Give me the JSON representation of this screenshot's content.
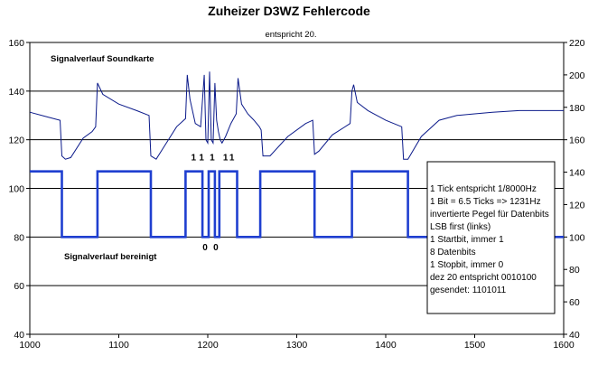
{
  "chart_data": {
    "type": "line",
    "title": "Zuheizer D3WZ Fehlercode",
    "subtitle": "entspricht 20.",
    "xlim": [
      1000,
      1600
    ],
    "xticks": [
      1000,
      1100,
      1200,
      1300,
      1400,
      1500,
      1600
    ],
    "ylim_left": [
      40,
      160
    ],
    "yticks_left": [
      40,
      60,
      80,
      100,
      120,
      140,
      160
    ],
    "ylim_right": [
      40,
      220
    ],
    "yticks_right": [
      40,
      60,
      80,
      100,
      120,
      140,
      160,
      180,
      200,
      220
    ],
    "grid": "horizontal",
    "series": [
      {
        "name": "Signalverlauf Soundkarte",
        "axis": "right",
        "color": "#0b1a8a",
        "x": [
          1000,
          1020,
          1034,
          1036,
          1040,
          1046,
          1060,
          1070,
          1074,
          1076,
          1082,
          1100,
          1120,
          1134,
          1136,
          1142,
          1150,
          1165,
          1175,
          1177,
          1180,
          1186,
          1192,
          1196,
          1198,
          1200,
          1202,
          1204,
          1206,
          1208,
          1210,
          1212,
          1214,
          1216,
          1220,
          1226,
          1232,
          1234,
          1238,
          1245,
          1252,
          1258,
          1260,
          1262,
          1270,
          1290,
          1310,
          1318,
          1320,
          1325,
          1340,
          1360,
          1362,
          1364,
          1368,
          1380,
          1400,
          1418,
          1420,
          1425,
          1440,
          1460,
          1480,
          1500,
          1520,
          1550,
          1580,
          1600
        ],
        "values": [
          177,
          174,
          172,
          150,
          148,
          149,
          161,
          165,
          168,
          195,
          188,
          182,
          178,
          175,
          150,
          148,
          155,
          168,
          173,
          200,
          185,
          170,
          168,
          200,
          160,
          158,
          202,
          160,
          158,
          195,
          172,
          165,
          160,
          158,
          162,
          170,
          176,
          198,
          182,
          176,
          172,
          168,
          166,
          150,
          150,
          162,
          170,
          172,
          151,
          153,
          163,
          170,
          190,
          194,
          183,
          178,
          172,
          168,
          148,
          148,
          162,
          172,
          175,
          176,
          177,
          178,
          178,
          178
        ]
      },
      {
        "name": "Signalverlauf bereinigt",
        "axis": "left",
        "color": "#1f3fd0",
        "x": [
          1000,
          1036,
          1036,
          1076,
          1076,
          1136,
          1136,
          1175,
          1175,
          1194,
          1194,
          1201,
          1201,
          1208,
          1208,
          1213,
          1213,
          1233,
          1233,
          1259,
          1259,
          1320,
          1320,
          1362,
          1362,
          1425,
          1425,
          1600
        ],
        "values": [
          107,
          107,
          80,
          80,
          107,
          107,
          80,
          80,
          107,
          107,
          80,
          80,
          107,
          107,
          80,
          80,
          107,
          107,
          80,
          80,
          107,
          107,
          80,
          80,
          107,
          107,
          80,
          80
        ]
      }
    ],
    "annotations": {
      "label_raw": "Signalverlauf Soundkarte",
      "label_clean": "Signalverlauf bereinigt",
      "bits": [
        {
          "text": "1",
          "x": 1184,
          "y": 113
        },
        {
          "text": "1",
          "x": 1193,
          "y": 113
        },
        {
          "text": "1",
          "x": 1205,
          "y": 113
        },
        {
          "text": "1",
          "x": 1220,
          "y": 113
        },
        {
          "text": "1",
          "x": 1227,
          "y": 113
        },
        {
          "text": "0",
          "x": 1197,
          "y": 76
        },
        {
          "text": "0",
          "x": 1209,
          "y": 76
        }
      ],
      "note_lines": [
        "1 Tick entspricht 1/8000Hz",
        "1 Bit = 6.5 Ticks => 1231Hz",
        "invertierte Pegel für Datenbits",
        "LSB first (links)",
        "1 Startbit, immer 1",
        "8 Datenbits",
        "1 Stopbit, immer 0",
        "dez 20 entspricht 0010100",
        "gesendet: 1101011"
      ]
    }
  }
}
